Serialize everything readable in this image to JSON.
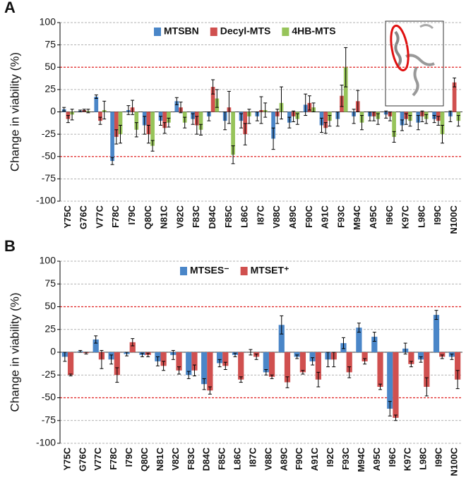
{
  "chart_data": [
    {
      "type": "bar",
      "panel_label": "A",
      "y_label": "Change in viability (%)",
      "categories": [
        "Y75C",
        "G76C",
        "V77C",
        "F78C",
        "I79C",
        "Q80C",
        "N81C",
        "V82C",
        "F83C",
        "D84C",
        "F85C",
        "L86C",
        "I87C",
        "V88C",
        "A89C",
        "F90C",
        "A91C",
        "F93C",
        "M94C",
        "A95C",
        "I96C",
        "K97C",
        "L98C",
        "I99C",
        "N100C"
      ],
      "series": [
        {
          "name": "MTSBN",
          "color": "#4a86c8",
          "values": [
            3,
            1,
            17,
            -55,
            2,
            -15,
            -10,
            12,
            -8,
            -5,
            -10,
            -10,
            -5,
            -30,
            -12,
            8,
            -15,
            -8,
            -5,
            -5,
            -3,
            -15,
            -12,
            -8,
            -5
          ],
          "errors": [
            2,
            1,
            2,
            4,
            5,
            10,
            5,
            4,
            6,
            5,
            10,
            8,
            5,
            12,
            6,
            12,
            8,
            8,
            8,
            5,
            4,
            6,
            8,
            4,
            6
          ]
        },
        {
          "name": "Decyl-MTS",
          "color": "#d0504f",
          "values": [
            -8,
            2,
            -10,
            -28,
            5,
            -25,
            -18,
            5,
            -15,
            28,
            5,
            -25,
            2,
            -5,
            -5,
            10,
            -18,
            18,
            12,
            -5,
            -5,
            -8,
            -5,
            -10,
            33
          ],
          "errors": [
            4,
            1,
            4,
            8,
            8,
            10,
            6,
            6,
            10,
            8,
            18,
            12,
            15,
            8,
            6,
            8,
            6,
            12,
            12,
            5,
            5,
            6,
            6,
            5,
            5
          ]
        },
        {
          "name": "4HB-MTS",
          "color": "#97c45a",
          "values": [
            -3,
            1,
            2,
            -25,
            -20,
            -38,
            -12,
            -12,
            -20,
            15,
            -48,
            -5,
            2,
            10,
            -8,
            5,
            -10,
            50,
            -12,
            -8,
            -28,
            -10,
            -8,
            -25,
            -10
          ],
          "errors": [
            6,
            2,
            10,
            10,
            8,
            6,
            5,
            6,
            6,
            10,
            10,
            8,
            8,
            18,
            6,
            5,
            6,
            22,
            8,
            6,
            6,
            6,
            5,
            10,
            6
          ]
        }
      ],
      "ylim": [
        -100,
        100
      ],
      "yticks": [
        100,
        75,
        50,
        25,
        0,
        -25,
        -50,
        -75,
        -100
      ],
      "grid": true,
      "reference_lines": [
        50,
        -50
      ],
      "reference_color": "#e02020",
      "legend": "upper center"
    },
    {
      "type": "bar",
      "panel_label": "B",
      "y_label": "Change in viability (%)",
      "categories": [
        "Y75C",
        "G76C",
        "V77C",
        "F78C",
        "I79C",
        "Q80C",
        "N81C",
        "V82C",
        "F83C",
        "D84C",
        "F85C",
        "L86C",
        "I87C",
        "V88C",
        "A89C",
        "F90C",
        "A91C",
        "I92C",
        "F93C",
        "M94C",
        "A95C",
        "I96C",
        "K97C",
        "L98C",
        "I99C",
        "N100C"
      ],
      "series": [
        {
          "name": "MTSES⁻",
          "color": "#4a86c8",
          "values": [
            -5,
            1,
            14,
            -8,
            -2,
            -3,
            -10,
            -3,
            -25,
            -35,
            -12,
            -3,
            0,
            -22,
            30,
            -5,
            -10,
            -8,
            10,
            27,
            17,
            -62,
            4,
            -8,
            41,
            -5
          ],
          "errors": [
            5,
            1,
            4,
            5,
            2,
            2,
            5,
            5,
            4,
            6,
            4,
            2,
            3,
            3,
            10,
            2,
            4,
            8,
            6,
            5,
            5,
            8,
            6,
            3,
            5,
            3
          ]
        },
        {
          "name": "MTSET⁺",
          "color": "#d0504f",
          "values": [
            -25,
            -1,
            -8,
            -25,
            11,
            -3,
            -15,
            -20,
            -20,
            -42,
            -15,
            -30,
            -5,
            -27,
            -33,
            -22,
            -30,
            -8,
            -22,
            -10,
            -38,
            -72,
            -13,
            -38,
            -5,
            -30
          ],
          "errors": [
            1,
            1,
            10,
            8,
            4,
            2,
            5,
            4,
            6,
            4,
            4,
            3,
            3,
            2,
            6,
            2,
            8,
            8,
            6,
            3,
            3,
            3,
            3,
            10,
            2,
            10
          ]
        }
      ],
      "ylim": [
        -100,
        100
      ],
      "yticks": [
        100,
        75,
        50,
        25,
        0,
        -25,
        -50,
        -75,
        -100
      ],
      "grid": true,
      "reference_lines": [
        50,
        -50
      ],
      "reference_color": "#e02020",
      "legend": "upper center"
    }
  ]
}
